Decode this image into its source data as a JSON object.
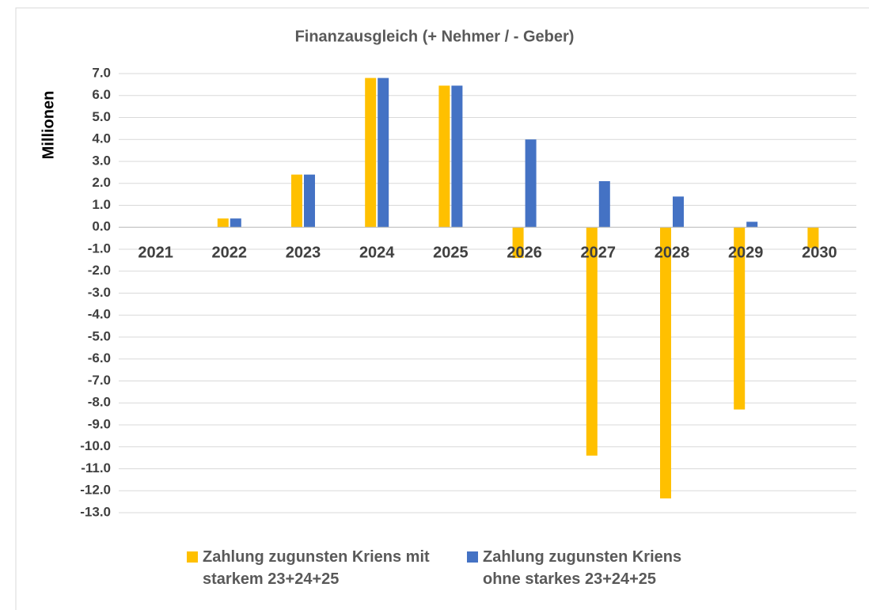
{
  "chart_data": {
    "type": "bar",
    "title": "Finanzausgleich (+ Nehmer / - Geber)",
    "y_label": "Millionen",
    "categories": [
      "2021",
      "2022",
      "2023",
      "2024",
      "2025",
      "2026",
      "2027",
      "2028",
      "2029",
      "2030"
    ],
    "series": [
      {
        "name": "Zahlung zugunsten Kriens mit starkem 23+24+25",
        "color": "#FFC000",
        "values": [
          0,
          0.4,
          2.4,
          6.8,
          6.45,
          -1.4,
          -10.4,
          -12.35,
          -8.3,
          -0.95
        ]
      },
      {
        "name": "Zahlung zugunsten Kriens ohne starkes 23+24+25",
        "color": "#4472C4",
        "values": [
          0,
          0.4,
          2.4,
          6.8,
          6.45,
          4.0,
          2.1,
          1.4,
          0.25,
          0
        ]
      }
    ],
    "ylim": [
      -13,
      7
    ],
    "yticks": [
      {
        "value": 7,
        "label": "7.0"
      },
      {
        "value": 6,
        "label": "6.0"
      },
      {
        "value": 5,
        "label": "5.0"
      },
      {
        "value": 4,
        "label": "4.0"
      },
      {
        "value": 3,
        "label": "3.0"
      },
      {
        "value": 2,
        "label": "2.0"
      },
      {
        "value": 1,
        "label": "1.0"
      },
      {
        "value": 0,
        "label": "0.0"
      },
      {
        "value": -1,
        "label": "-1.0"
      },
      {
        "value": -2,
        "label": "-2.0"
      },
      {
        "value": -3,
        "label": "-3.0"
      },
      {
        "value": -4,
        "label": "-4.0"
      },
      {
        "value": -5,
        "label": "-5.0"
      },
      {
        "value": -6,
        "label": "-6.0"
      },
      {
        "value": -7,
        "label": "-7.0"
      },
      {
        "value": -8,
        "label": "-8.0"
      },
      {
        "value": -9,
        "label": "-9.0"
      },
      {
        "value": -10,
        "label": "-10.0"
      },
      {
        "value": -11,
        "label": "-11.0"
      },
      {
        "value": -12,
        "label": "-12.0"
      },
      {
        "value": -13,
        "label": "-13.0"
      }
    ],
    "grid": true,
    "legend": "bottom"
  }
}
